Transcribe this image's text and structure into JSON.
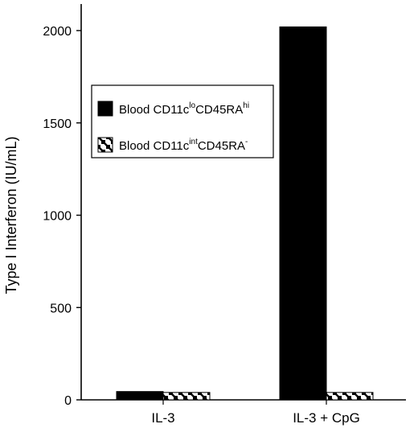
{
  "chart_data": {
    "type": "bar",
    "categories": [
      "IL-3",
      "IL-3 + CpG"
    ],
    "series": [
      {
        "name": "Blood CD11c^lo CD45RA^hi",
        "label_parts": [
          "Blood CD11c",
          "lo",
          "CD45RA",
          "hi"
        ],
        "fill": "solid",
        "color": "#000000",
        "values": [
          45,
          2020
        ]
      },
      {
        "name": "Blood CD11c^int CD45RA^-",
        "label_parts": [
          "Blood CD11c",
          "int",
          "CD45RA",
          "-"
        ],
        "fill": "hatched",
        "color": "#000000",
        "values": [
          40,
          40
        ]
      }
    ],
    "xlabel": "",
    "ylabel": "Type I Interferon (IU/mL)",
    "ylim": [
      0,
      2200
    ],
    "yticks": [
      0,
      500,
      1000,
      1500,
      2000
    ],
    "grid": false,
    "legend_position": "upper-left"
  }
}
